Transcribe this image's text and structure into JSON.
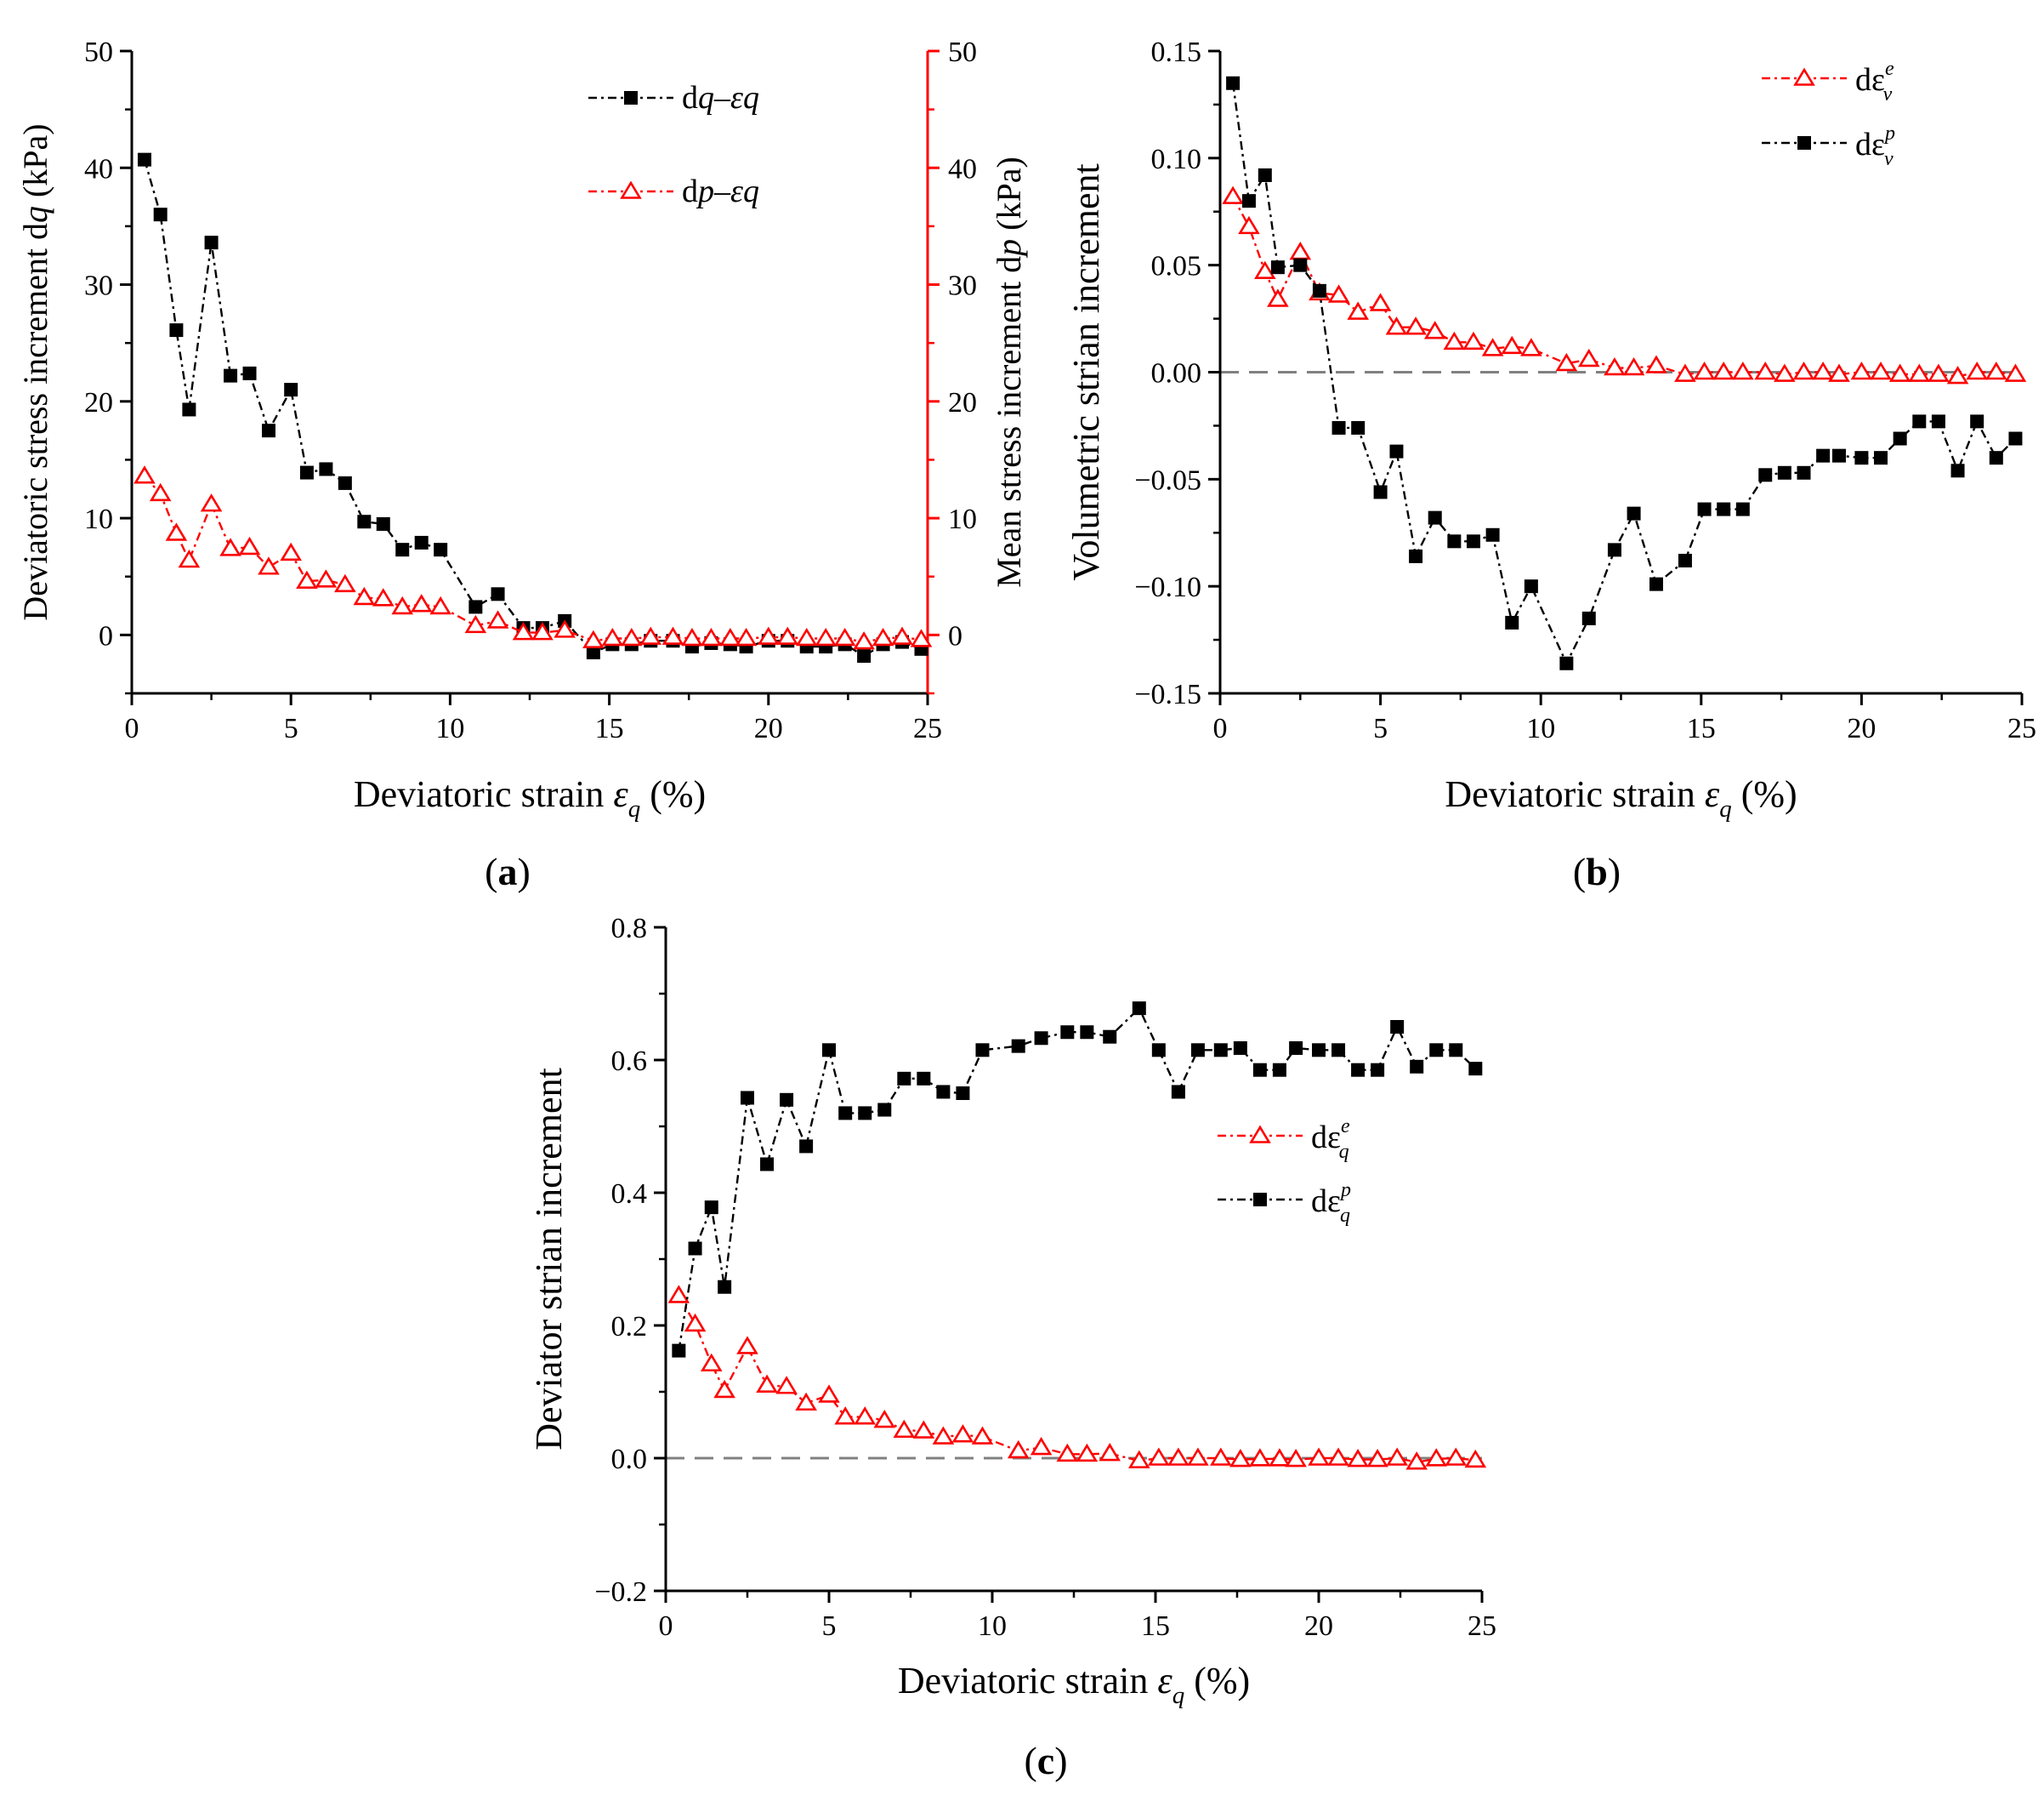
{
  "colors": {
    "black": "#000000",
    "red": "#ff0000",
    "zero_line": "#808080"
  },
  "chart_data": [
    {
      "id": "a",
      "panel_label": "(a)",
      "type": "line",
      "xlabel": "Deviatoric strain ε_q (%)",
      "ylabel": "Deviatoric  stress increment dq (kPa)",
      "ylabel_right": "Mean  stress increment dp (kPa)",
      "xlim": [
        0,
        25
      ],
      "ylim": [
        -5,
        50
      ],
      "ylim_right": [
        -5,
        50
      ],
      "xticks": [
        0,
        5,
        10,
        15,
        20,
        25
      ],
      "yticks": [
        0,
        10,
        20,
        30,
        40,
        50
      ],
      "yticks_right": [
        0,
        10,
        20,
        30,
        40,
        50
      ],
      "xtick_labels": [
        "0",
        "5",
        "10",
        "15",
        "20",
        "25"
      ],
      "ytick_labels": [
        "0",
        "10",
        "20",
        "30",
        "40",
        "50"
      ],
      "ytick_labels_right": [
        "0",
        "10",
        "20",
        "30",
        "40",
        "50"
      ],
      "legend_position": "top-right",
      "series": [
        {
          "name": "dq–ε_q",
          "legend": "dq–εq",
          "color": "#000000",
          "marker": "square",
          "axis": "left",
          "x": [
            0.4,
            0.9,
            1.4,
            1.8,
            2.5,
            3.1,
            3.7,
            4.3,
            5.0,
            5.5,
            6.1,
            6.7,
            7.3,
            7.9,
            8.5,
            9.1,
            9.7,
            10.8,
            11.5,
            12.3,
            12.9,
            13.6,
            14.5,
            15.1,
            15.7,
            16.3,
            17.0,
            17.6,
            18.2,
            18.8,
            19.3,
            20.0,
            20.6,
            21.2,
            21.8,
            22.4,
            23.0,
            23.6,
            24.2,
            24.8
          ],
          "values": [
            40.7,
            36.0,
            26.1,
            19.3,
            33.6,
            22.2,
            22.4,
            17.5,
            21.0,
            13.9,
            14.2,
            13.0,
            9.7,
            9.5,
            7.3,
            7.9,
            7.3,
            2.4,
            3.5,
            0.6,
            0.6,
            1.2,
            -1.5,
            -0.8,
            -0.8,
            -0.5,
            -0.5,
            -1.0,
            -0.7,
            -0.8,
            -1.0,
            -0.5,
            -0.5,
            -1.0,
            -1.0,
            -0.8,
            -1.8,
            -0.8,
            -0.6,
            -1.2
          ]
        },
        {
          "name": "dp–ε_q",
          "legend": "dp–εq",
          "color": "#ff0000",
          "marker": "triangle",
          "axis": "right",
          "x": [
            0.4,
            0.9,
            1.4,
            1.8,
            2.5,
            3.1,
            3.7,
            4.3,
            5.0,
            5.5,
            6.1,
            6.7,
            7.3,
            7.9,
            8.5,
            9.1,
            9.7,
            10.8,
            11.5,
            12.3,
            12.9,
            13.6,
            14.5,
            15.1,
            15.7,
            16.3,
            17.0,
            17.6,
            18.2,
            18.8,
            19.3,
            20.0,
            20.6,
            21.2,
            21.8,
            22.4,
            23.0,
            23.6,
            24.2,
            24.8
          ],
          "values": [
            13.6,
            12.1,
            8.7,
            6.4,
            11.2,
            7.4,
            7.5,
            5.8,
            7.0,
            4.6,
            4.7,
            4.3,
            3.2,
            3.1,
            2.4,
            2.6,
            2.4,
            0.8,
            1.2,
            0.2,
            0.2,
            0.4,
            -0.5,
            -0.3,
            -0.3,
            -0.2,
            -0.2,
            -0.3,
            -0.3,
            -0.3,
            -0.3,
            -0.2,
            -0.2,
            -0.3,
            -0.3,
            -0.3,
            -0.6,
            -0.3,
            -0.2,
            -0.4
          ]
        }
      ]
    },
    {
      "id": "b",
      "panel_label": "(b)",
      "type": "line",
      "xlabel": "Deviatoric strain ε_q (%)",
      "ylabel": "Volumetric strian increment",
      "xlim": [
        0,
        25
      ],
      "ylim": [
        -0.15,
        0.15
      ],
      "xticks": [
        0,
        5,
        10,
        15,
        20,
        25
      ],
      "yticks": [
        -0.15,
        -0.1,
        -0.05,
        0,
        0.05,
        0.1,
        0.15
      ],
      "xtick_labels": [
        "0",
        "5",
        "10",
        "15",
        "20",
        "25"
      ],
      "ytick_labels": [
        "−0.15",
        "−0.10",
        "−0.05",
        "0.00",
        "0.05",
        "0.10",
        "0.15"
      ],
      "zero_line": 0,
      "legend_position": "top-right",
      "series": [
        {
          "name": "dε_v^e",
          "legend": "dε",
          "legend_sub": "v",
          "legend_sup": "e",
          "color": "#ff0000",
          "marker": "triangle",
          "x": [
            0.4,
            0.9,
            1.4,
            1.8,
            2.5,
            3.1,
            3.7,
            4.3,
            5.0,
            5.5,
            6.1,
            6.7,
            7.3,
            7.9,
            8.5,
            9.1,
            9.7,
            10.8,
            11.5,
            12.3,
            12.9,
            13.6,
            14.5,
            15.1,
            15.7,
            16.3,
            17.0,
            17.6,
            18.2,
            18.8,
            19.3,
            20.0,
            20.6,
            21.2,
            21.8,
            22.4,
            23.0,
            23.6,
            24.2,
            24.8
          ],
          "values": [
            0.082,
            0.068,
            0.047,
            0.034,
            0.056,
            0.037,
            0.036,
            0.028,
            0.032,
            0.021,
            0.021,
            0.019,
            0.014,
            0.014,
            0.011,
            0.012,
            0.011,
            0.004,
            0.006,
            0.002,
            0.002,
            0.003,
            -0.001,
            0.0,
            0.0,
            0.0,
            0.0,
            -0.001,
            0.0,
            0.0,
            -0.001,
            0.0,
            0.0,
            -0.001,
            -0.001,
            -0.001,
            -0.002,
            0.0,
            0.0,
            -0.001
          ]
        },
        {
          "name": "dε_v^p",
          "legend": "dε",
          "legend_sub": "v",
          "legend_sup": "p",
          "color": "#000000",
          "marker": "square",
          "x": [
            0.4,
            0.9,
            1.4,
            1.8,
            2.5,
            3.1,
            3.7,
            4.3,
            5.0,
            5.5,
            6.1,
            6.7,
            7.3,
            7.9,
            8.5,
            9.1,
            9.7,
            10.8,
            11.5,
            12.3,
            12.9,
            13.6,
            14.5,
            15.1,
            15.7,
            16.3,
            17.0,
            17.6,
            18.2,
            18.8,
            19.3,
            20.0,
            20.6,
            21.2,
            21.8,
            22.4,
            23.0,
            23.6,
            24.2,
            24.8
          ],
          "values": [
            0.135,
            0.08,
            0.092,
            0.049,
            0.05,
            0.038,
            -0.026,
            -0.026,
            -0.056,
            -0.037,
            -0.086,
            -0.068,
            -0.079,
            -0.079,
            -0.076,
            -0.117,
            -0.1,
            -0.136,
            -0.115,
            -0.083,
            -0.066,
            -0.099,
            -0.088,
            -0.064,
            -0.064,
            -0.064,
            -0.048,
            -0.047,
            -0.047,
            -0.039,
            -0.039,
            -0.04,
            -0.04,
            -0.031,
            -0.023,
            -0.023,
            -0.046,
            -0.023,
            -0.04,
            -0.031
          ]
        }
      ]
    },
    {
      "id": "c",
      "panel_label": "(c)",
      "type": "line",
      "xlabel": "Deviatoric strain ε_q (%)",
      "ylabel": "Deviator strian increment",
      "xlim": [
        0,
        25
      ],
      "ylim": [
        -0.2,
        0.8
      ],
      "xticks": [
        0,
        5,
        10,
        15,
        20,
        25
      ],
      "yticks": [
        -0.2,
        0,
        0.2,
        0.4,
        0.6,
        0.8
      ],
      "xtick_labels": [
        "0",
        "5",
        "10",
        "15",
        "20",
        "25"
      ],
      "ytick_labels": [
        "−0.2",
        "0.0",
        "0.2",
        "0.4",
        "0.6",
        "0.8"
      ],
      "zero_line": 0,
      "legend_position": "center-right",
      "series": [
        {
          "name": "dε_q^e",
          "legend": "dε",
          "legend_sub": "q",
          "legend_sup": "e",
          "color": "#ff0000",
          "marker": "triangle",
          "x": [
            0.4,
            0.9,
            1.4,
            1.8,
            2.5,
            3.1,
            3.7,
            4.3,
            5.0,
            5.5,
            6.1,
            6.7,
            7.3,
            7.9,
            8.5,
            9.1,
            9.7,
            10.8,
            11.5,
            12.3,
            12.9,
            13.6,
            14.5,
            15.1,
            15.7,
            16.3,
            17.0,
            17.6,
            18.2,
            18.8,
            19.3,
            20.0,
            20.6,
            21.2,
            21.8,
            22.4,
            23.0,
            23.6,
            24.2,
            24.8
          ],
          "values": [
            0.245,
            0.202,
            0.142,
            0.102,
            0.168,
            0.11,
            0.108,
            0.083,
            0.095,
            0.062,
            0.062,
            0.057,
            0.042,
            0.041,
            0.032,
            0.035,
            0.032,
            0.011,
            0.016,
            0.006,
            0.006,
            0.007,
            -0.004,
            0.0,
            0.0,
            0.0,
            0.0,
            -0.002,
            -0.001,
            -0.001,
            -0.002,
            0.0,
            0.0,
            -0.002,
            -0.002,
            0.0,
            -0.006,
            -0.001,
            0.0,
            -0.003
          ]
        },
        {
          "name": "dε_q^p",
          "legend": "dε",
          "legend_sub": "q",
          "legend_sup": "p",
          "color": "#000000",
          "marker": "square",
          "x": [
            0.4,
            0.9,
            1.4,
            1.8,
            2.5,
            3.1,
            3.7,
            4.3,
            5.0,
            5.5,
            6.1,
            6.7,
            7.3,
            7.9,
            8.5,
            9.1,
            9.7,
            10.8,
            11.5,
            12.3,
            12.9,
            13.6,
            14.5,
            15.1,
            15.7,
            16.3,
            17.0,
            17.6,
            18.2,
            18.8,
            19.3,
            20.0,
            20.6,
            21.2,
            21.8,
            22.4,
            23.0,
            23.6,
            24.2,
            24.8
          ],
          "values": [
            0.162,
            0.316,
            0.378,
            0.258,
            0.543,
            0.443,
            0.54,
            0.47,
            0.615,
            0.52,
            0.52,
            0.525,
            0.572,
            0.572,
            0.552,
            0.55,
            0.615,
            0.621,
            0.633,
            0.642,
            0.642,
            0.635,
            0.678,
            0.615,
            0.552,
            0.615,
            0.615,
            0.618,
            0.585,
            0.585,
            0.618,
            0.615,
            0.615,
            0.585,
            0.585,
            0.65,
            0.59,
            0.615,
            0.615,
            0.587
          ]
        }
      ]
    }
  ]
}
